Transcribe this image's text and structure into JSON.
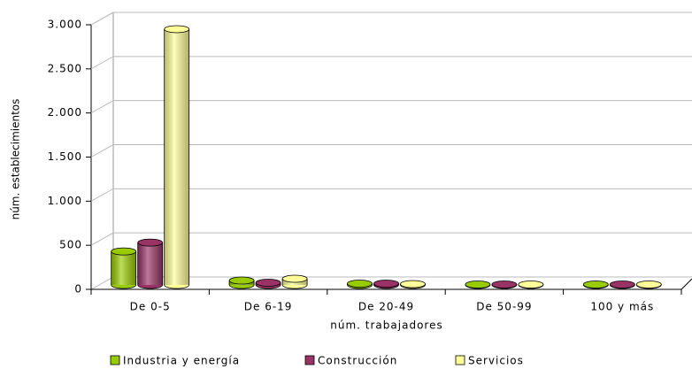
{
  "chart_data": {
    "type": "bar3d",
    "categories": [
      "De 0-5",
      "De 6-19",
      "De 20-49",
      "De 50-99",
      "100 y más"
    ],
    "series": [
      {
        "name": "Industria y energía",
        "color": "#99cc00",
        "values": [
          380,
          50,
          15,
          5,
          5
        ]
      },
      {
        "name": "Construcción",
        "color": "#993366",
        "values": [
          480,
          25,
          15,
          5,
          5
        ]
      },
      {
        "name": "Servicios",
        "color": "#ffff99",
        "values": [
          2900,
          70,
          10,
          5,
          5
        ]
      }
    ],
    "ylim": [
      0,
      3000
    ],
    "yticks": [
      0,
      500,
      {
        "value": 1000,
        "label": "1.000"
      },
      {
        "value": 1500,
        "label": "1.500"
      },
      {
        "value": 2000,
        "label": "2.000"
      },
      {
        "value": 2500,
        "label": "2.500"
      },
      {
        "value": 3000,
        "label": "3.000"
      }
    ],
    "y_label": "núm. establecimientos",
    "x_label": "núm. trabajadores",
    "grid": true
  }
}
